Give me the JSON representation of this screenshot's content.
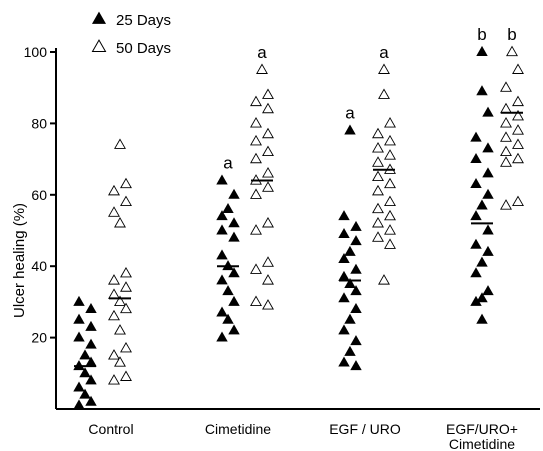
{
  "chart_data": {
    "type": "scatter",
    "title": "",
    "xlabel": "",
    "ylabel": "Ulcer healing (%)",
    "ylim": [
      0,
      100
    ],
    "yticks": [
      20,
      40,
      60,
      80,
      100
    ],
    "categories": [
      "Control",
      "Cimetidine",
      "EGF / URO",
      "EGF/URO+\nCimetidine"
    ],
    "legend": {
      "placement": "top-left",
      "entries": [
        {
          "series": 0,
          "label": "25 Days",
          "marker": "filled-triangle"
        },
        {
          "series": 1,
          "label": "50 Days",
          "marker": "open-triangle"
        }
      ]
    },
    "series": [
      {
        "name": "25 Days",
        "marker": "filled-triangle",
        "color": "#000000",
        "points": [
          [
            0,
            30,
            -1
          ],
          [
            0,
            28,
            1
          ],
          [
            0,
            25,
            -1
          ],
          [
            0,
            23,
            1
          ],
          [
            0,
            20,
            -1
          ],
          [
            0,
            18,
            1
          ],
          [
            0,
            15,
            0
          ],
          [
            0,
            13,
            1
          ],
          [
            0,
            12,
            -1
          ],
          [
            0,
            10,
            0
          ],
          [
            0,
            8,
            1
          ],
          [
            0,
            6,
            -1
          ],
          [
            0,
            4,
            0
          ],
          [
            0,
            2,
            1
          ],
          [
            0,
            1,
            -1
          ],
          [
            1,
            64,
            -1
          ],
          [
            1,
            60,
            1
          ],
          [
            1,
            56,
            0
          ],
          [
            1,
            54,
            -1
          ],
          [
            1,
            52,
            1
          ],
          [
            1,
            50,
            -1
          ],
          [
            1,
            48,
            1
          ],
          [
            1,
            43,
            -1
          ],
          [
            1,
            40,
            0
          ],
          [
            1,
            38,
            1
          ],
          [
            1,
            36,
            -1
          ],
          [
            1,
            33,
            0
          ],
          [
            1,
            30,
            1
          ],
          [
            1,
            27,
            -1
          ],
          [
            1,
            25,
            0
          ],
          [
            1,
            22,
            1
          ],
          [
            1,
            20,
            -1
          ],
          [
            2,
            78,
            0
          ],
          [
            2,
            54,
            -1
          ],
          [
            2,
            51,
            1
          ],
          [
            2,
            49,
            -1
          ],
          [
            2,
            47,
            1
          ],
          [
            2,
            44,
            0
          ],
          [
            2,
            42,
            -1
          ],
          [
            2,
            39,
            1
          ],
          [
            2,
            37,
            -1
          ],
          [
            2,
            35,
            0
          ],
          [
            2,
            33,
            1
          ],
          [
            2,
            31,
            -1
          ],
          [
            2,
            28,
            1
          ],
          [
            2,
            25,
            0
          ],
          [
            2,
            22,
            -1
          ],
          [
            2,
            19,
            1
          ],
          [
            2,
            16,
            0
          ],
          [
            2,
            13,
            -1
          ],
          [
            2,
            12,
            1
          ],
          [
            3,
            100,
            0
          ],
          [
            3,
            89,
            0
          ],
          [
            3,
            83,
            1
          ],
          [
            3,
            76,
            -1
          ],
          [
            3,
            73,
            1
          ],
          [
            3,
            70,
            -1
          ],
          [
            3,
            66,
            1
          ],
          [
            3,
            63,
            -1
          ],
          [
            3,
            60,
            1
          ],
          [
            3,
            57,
            0
          ],
          [
            3,
            54,
            -1
          ],
          [
            3,
            50,
            1
          ],
          [
            3,
            46,
            -1
          ],
          [
            3,
            44,
            1
          ],
          [
            3,
            41,
            0
          ],
          [
            3,
            38,
            -1
          ],
          [
            3,
            33,
            1
          ],
          [
            3,
            31,
            0
          ],
          [
            3,
            30,
            -1
          ],
          [
            3,
            25,
            0
          ]
        ]
      },
      {
        "name": "50 Days",
        "marker": "open-triangle",
        "color": "#000000",
        "points": [
          [
            0,
            74,
            0
          ],
          [
            0,
            63,
            1
          ],
          [
            0,
            61,
            -1
          ],
          [
            0,
            58,
            1
          ],
          [
            0,
            55,
            -1
          ],
          [
            0,
            52,
            0
          ],
          [
            0,
            38,
            1
          ],
          [
            0,
            36,
            -1
          ],
          [
            0,
            34,
            1
          ],
          [
            0,
            32,
            -1
          ],
          [
            0,
            30,
            0
          ],
          [
            0,
            28,
            1
          ],
          [
            0,
            26,
            -1
          ],
          [
            0,
            22,
            0
          ],
          [
            0,
            17,
            1
          ],
          [
            0,
            15,
            -1
          ],
          [
            0,
            13,
            0
          ],
          [
            0,
            9,
            1
          ],
          [
            0,
            8,
            -1
          ],
          [
            1,
            95,
            0
          ],
          [
            1,
            88,
            1
          ],
          [
            1,
            86,
            -1
          ],
          [
            1,
            84,
            1
          ],
          [
            1,
            80,
            -1
          ],
          [
            1,
            77,
            1
          ],
          [
            1,
            75,
            -1
          ],
          [
            1,
            72,
            1
          ],
          [
            1,
            70,
            -1
          ],
          [
            1,
            66,
            1
          ],
          [
            1,
            64,
            -1
          ],
          [
            1,
            62,
            1
          ],
          [
            1,
            60,
            -1
          ],
          [
            1,
            52,
            1
          ],
          [
            1,
            50,
            -1
          ],
          [
            1,
            41,
            1
          ],
          [
            1,
            39,
            -1
          ],
          [
            1,
            36,
            1
          ],
          [
            1,
            30,
            -1
          ],
          [
            1,
            29,
            1
          ],
          [
            2,
            95,
            0
          ],
          [
            2,
            88,
            0
          ],
          [
            2,
            80,
            1
          ],
          [
            2,
            77,
            -1
          ],
          [
            2,
            75,
            1
          ],
          [
            2,
            73,
            -1
          ],
          [
            2,
            71,
            1
          ],
          [
            2,
            69,
            -1
          ],
          [
            2,
            67,
            1
          ],
          [
            2,
            65,
            -1
          ],
          [
            2,
            63,
            1
          ],
          [
            2,
            61,
            -1
          ],
          [
            2,
            58,
            1
          ],
          [
            2,
            56,
            -1
          ],
          [
            2,
            54,
            1
          ],
          [
            2,
            52,
            -1
          ],
          [
            2,
            50,
            1
          ],
          [
            2,
            48,
            -1
          ],
          [
            2,
            46,
            1
          ],
          [
            2,
            36,
            0
          ],
          [
            3,
            100,
            0
          ],
          [
            3,
            95,
            1
          ],
          [
            3,
            90,
            -1
          ],
          [
            3,
            86,
            1
          ],
          [
            3,
            84,
            -1
          ],
          [
            3,
            82,
            1
          ],
          [
            3,
            80,
            -1
          ],
          [
            3,
            78,
            1
          ],
          [
            3,
            76,
            -1
          ],
          [
            3,
            74,
            1
          ],
          [
            3,
            72,
            -1
          ],
          [
            3,
            70,
            1
          ],
          [
            3,
            69,
            -1
          ],
          [
            3,
            58,
            1
          ],
          [
            3,
            57,
            -1
          ]
        ]
      }
    ],
    "means": [
      {
        "category": 0,
        "series": 0,
        "value": 12
      },
      {
        "category": 0,
        "series": 1,
        "value": 31
      },
      {
        "category": 1,
        "series": 0,
        "value": 40
      },
      {
        "category": 1,
        "series": 1,
        "value": 64
      },
      {
        "category": 2,
        "series": 0,
        "value": 36
      },
      {
        "category": 2,
        "series": 1,
        "value": 67
      },
      {
        "category": 3,
        "series": 0,
        "value": 52
      },
      {
        "category": 3,
        "series": 1,
        "value": 83
      }
    ],
    "annotations": [
      {
        "category": 1,
        "series": 0,
        "text": "a"
      },
      {
        "category": 1,
        "series": 1,
        "text": "a"
      },
      {
        "category": 2,
        "series": 0,
        "text": "a"
      },
      {
        "category": 2,
        "series": 1,
        "text": "a"
      },
      {
        "category": 3,
        "series": 0,
        "text": "b"
      },
      {
        "category": 3,
        "series": 1,
        "text": "b"
      }
    ]
  }
}
